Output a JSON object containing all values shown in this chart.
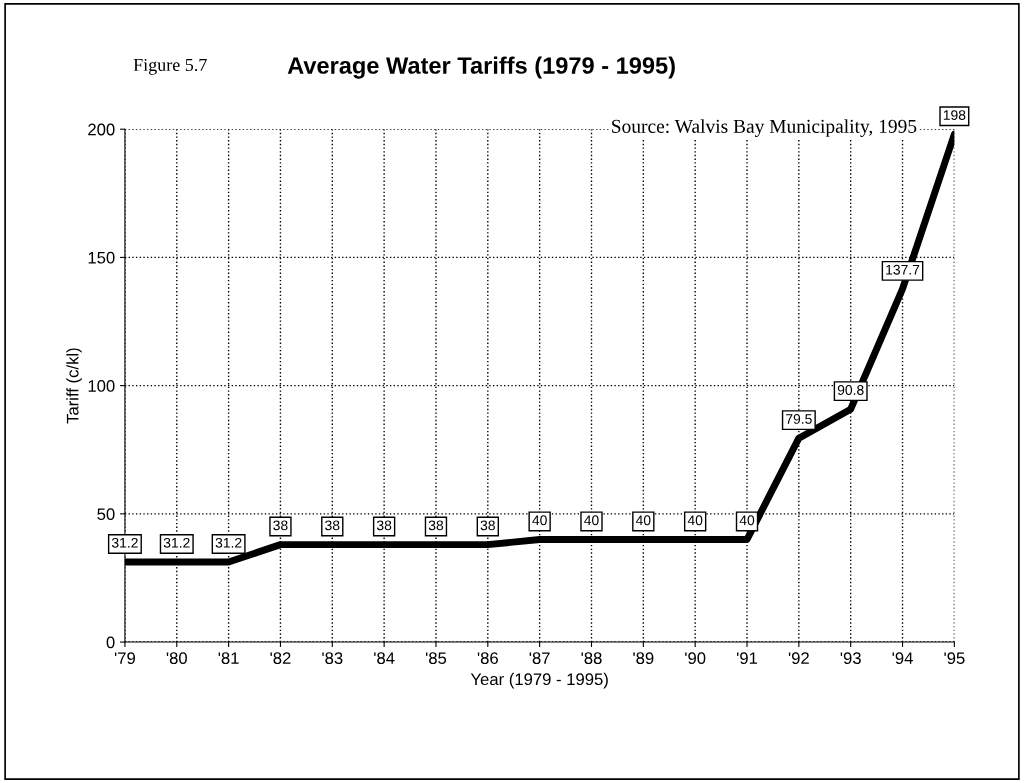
{
  "chart_data": {
    "type": "line",
    "title": "Average Water Tariffs (1979 - 1995)",
    "xlabel": "Year (1979 - 1995)",
    "ylabel": "Tariff (c/kl)",
    "annotations": [
      "Figure 5.7",
      "Source: Walvis Bay Municipality, 1995"
    ],
    "categories": [
      "'79",
      "'80",
      "'81",
      "'82",
      "'83",
      "'84",
      "'85",
      "'86",
      "'87",
      "'88",
      "'89",
      "'90",
      "'91",
      "'92",
      "'93",
      "'94",
      "'95"
    ],
    "series": [
      {
        "color": "#000000",
        "values": [
          31.2,
          31.2,
          31.2,
          38,
          38,
          38,
          38,
          38,
          40,
          40,
          40,
          40,
          40,
          79.5,
          90.8,
          137.7,
          198
        ]
      }
    ],
    "ylim": [
      0,
      200
    ],
    "yticks": [
      0,
      50,
      100,
      150,
      200
    ],
    "grid": true,
    "data_labels": true,
    "marker": "none",
    "line_style": "solid"
  }
}
